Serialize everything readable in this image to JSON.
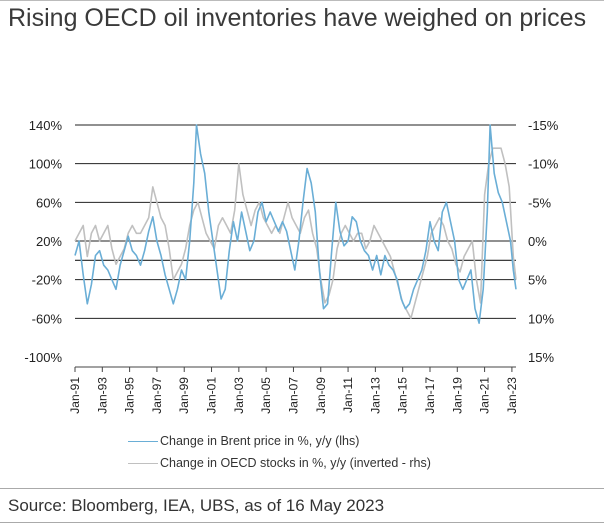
{
  "title": "Rising OECD oil inventories have weighed on prices",
  "source": "Source: Bloomberg, IEA, UBS, as of 16 May 2023",
  "chart_data": {
    "type": "line",
    "xlabel": "",
    "ylabel": "",
    "x_ticks": [
      "Jan-91",
      "Jan-93",
      "Jan-95",
      "Jan-97",
      "Jan-99",
      "Jan-01",
      "Jan-03",
      "Jan-05",
      "Jan-07",
      "Jan-09",
      "Jan-11",
      "Jan-13",
      "Jan-15",
      "Jan-17",
      "Jan-19",
      "Jan-21",
      "Jan-23"
    ],
    "x_range": [
      1991.0,
      2023.3
    ],
    "y_left": {
      "ticks": [
        "140%",
        "100%",
        "60%",
        "20%",
        "-20%",
        "-60%",
        "-100%"
      ],
      "values": [
        140,
        100,
        60,
        20,
        -20,
        -60,
        -100
      ],
      "ylim": [
        -100,
        140
      ]
    },
    "y_right": {
      "ticks": [
        "-15%",
        "-10%",
        "-5%",
        "0%",
        "5%",
        "10%",
        "15%"
      ],
      "values": [
        -15,
        -10,
        -5,
        0,
        5,
        10,
        15
      ],
      "ylim": [
        15,
        -15
      ],
      "inverted": true
    },
    "grid": true,
    "series": [
      {
        "name": "Change in Brent price in %, y/y (lhs)",
        "axis": "left",
        "color": "#6aaed6",
        "x": [
          1991.0,
          1991.3,
          1991.6,
          1991.9,
          1992.2,
          1992.5,
          1992.8,
          1993.1,
          1993.4,
          1993.7,
          1994.0,
          1994.3,
          1994.6,
          1994.9,
          1995.2,
          1995.5,
          1995.8,
          1996.1,
          1996.4,
          1996.7,
          1997.0,
          1997.3,
          1997.6,
          1997.9,
          1998.2,
          1998.5,
          1998.8,
          1999.1,
          1999.4,
          1999.7,
          1999.9,
          2000.2,
          2000.5,
          2000.8,
          2001.1,
          2001.4,
          2001.7,
          2002.0,
          2002.3,
          2002.6,
          2002.9,
          2003.2,
          2003.5,
          2003.8,
          2004.1,
          2004.4,
          2004.7,
          2005.0,
          2005.3,
          2005.6,
          2005.9,
          2006.2,
          2006.5,
          2006.8,
          2007.1,
          2007.4,
          2007.7,
          2008.0,
          2008.3,
          2008.6,
          2008.9,
          2009.2,
          2009.5,
          2009.8,
          2010.1,
          2010.4,
          2010.7,
          2011.0,
          2011.3,
          2011.6,
          2011.9,
          2012.2,
          2012.5,
          2012.8,
          2013.1,
          2013.4,
          2013.7,
          2014.0,
          2014.3,
          2014.6,
          2014.9,
          2015.2,
          2015.5,
          2015.8,
          2016.1,
          2016.4,
          2016.7,
          2017.0,
          2017.3,
          2017.6,
          2017.9,
          2018.2,
          2018.5,
          2018.8,
          2019.1,
          2019.4,
          2019.7,
          2020.0,
          2020.3,
          2020.6,
          2020.9,
          2021.2,
          2021.4,
          2021.7,
          2022.0,
          2022.3,
          2022.6,
          2022.9,
          2023.1,
          2023.3
        ],
        "values": [
          5,
          20,
          -15,
          -45,
          -25,
          5,
          10,
          -5,
          -10,
          -20,
          -30,
          -5,
          10,
          25,
          10,
          5,
          -5,
          10,
          30,
          45,
          20,
          5,
          -15,
          -30,
          -45,
          -30,
          -10,
          -20,
          20,
          80,
          140,
          110,
          90,
          50,
          20,
          -10,
          -40,
          -30,
          10,
          40,
          20,
          50,
          30,
          10,
          20,
          50,
          60,
          40,
          50,
          40,
          30,
          40,
          30,
          10,
          -10,
          20,
          60,
          95,
          80,
          50,
          -10,
          -50,
          -45,
          10,
          60,
          30,
          15,
          20,
          45,
          40,
          20,
          10,
          5,
          -10,
          5,
          -15,
          5,
          -5,
          -10,
          -20,
          -40,
          -50,
          -45,
          -30,
          -20,
          -10,
          10,
          40,
          20,
          10,
          50,
          60,
          40,
          20,
          -20,
          -30,
          -20,
          -10,
          -50,
          -65,
          -30,
          50,
          140,
          90,
          70,
          60,
          40,
          20,
          -10,
          -30
        ]
      },
      {
        "name": "Change in OECD stocks in %, y/y (inverted - rhs)",
        "axis": "right",
        "color": "#c0c0c0",
        "x": [
          1991.0,
          1991.3,
          1991.6,
          1991.9,
          1992.2,
          1992.5,
          1992.8,
          1993.1,
          1993.4,
          1993.7,
          1994.0,
          1994.3,
          1994.6,
          1994.9,
          1995.2,
          1995.5,
          1995.8,
          1996.1,
          1996.4,
          1996.7,
          1997.0,
          1997.3,
          1997.6,
          1997.9,
          1998.2,
          1998.5,
          1998.8,
          1999.1,
          1999.4,
          1999.7,
          2000.0,
          2000.3,
          2000.6,
          2000.9,
          2001.2,
          2001.5,
          2001.8,
          2002.1,
          2002.4,
          2002.7,
          2003.0,
          2003.3,
          2003.6,
          2003.9,
          2004.2,
          2004.5,
          2004.8,
          2005.1,
          2005.4,
          2005.7,
          2006.0,
          2006.3,
          2006.6,
          2006.9,
          2007.2,
          2007.5,
          2007.8,
          2008.1,
          2008.4,
          2008.7,
          2009.0,
          2009.3,
          2009.6,
          2009.9,
          2010.2,
          2010.5,
          2010.8,
          2011.1,
          2011.4,
          2011.7,
          2012.0,
          2012.3,
          2012.6,
          2012.9,
          2013.2,
          2013.5,
          2013.8,
          2014.1,
          2014.4,
          2014.7,
          2015.0,
          2015.3,
          2015.6,
          2015.9,
          2016.2,
          2016.5,
          2016.8,
          2017.1,
          2017.4,
          2017.7,
          2018.0,
          2018.3,
          2018.6,
          2018.9,
          2019.2,
          2019.5,
          2019.8,
          2020.1,
          2020.4,
          2020.7,
          2021.0,
          2021.3,
          2021.6,
          2021.9,
          2022.2,
          2022.5,
          2022.8,
          2023.1,
          2023.3
        ],
        "values": [
          0,
          -1,
          -2,
          2,
          -1,
          -2,
          0,
          -1,
          -2,
          1,
          3,
          2,
          1,
          -1,
          -2,
          -1,
          -1,
          -2,
          -3,
          -7,
          -5,
          -3,
          -2,
          1,
          5,
          4,
          3,
          1,
          -2,
          -4,
          -5,
          -3,
          -1,
          0,
          1,
          -2,
          -3,
          -2,
          -1,
          -4,
          -10,
          -6,
          -4,
          -2,
          -4,
          -5,
          -3,
          -2,
          -1,
          -2,
          -1,
          -3,
          -5,
          -3,
          -2,
          -1,
          -3,
          -4,
          -1,
          1,
          5,
          8,
          7,
          5,
          1,
          -1,
          -2,
          -1,
          0,
          -1,
          -1,
          1,
          0,
          -2,
          -1,
          0,
          1,
          2,
          4,
          6,
          8,
          9,
          10,
          8,
          6,
          4,
          2,
          -1,
          -2,
          -3,
          -2,
          0,
          1,
          3,
          4,
          2,
          1,
          0,
          5,
          8,
          -6,
          -10,
          -12,
          -12,
          -12,
          -10,
          -7,
          2,
          5
        ]
      }
    ]
  }
}
